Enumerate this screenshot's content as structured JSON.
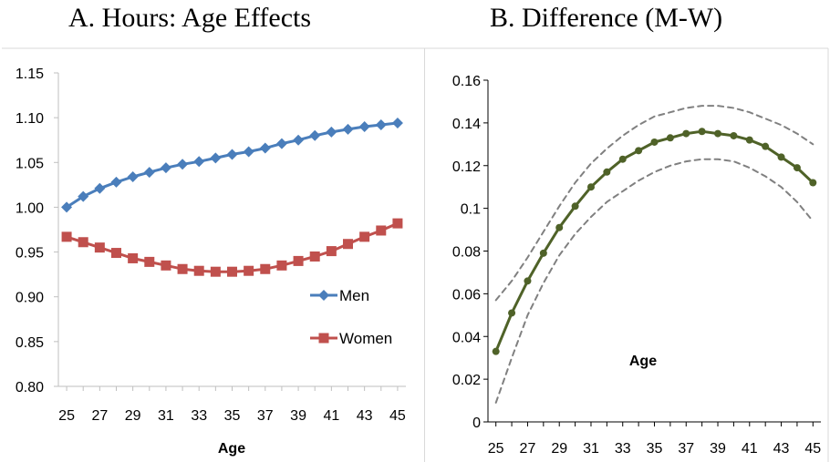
{
  "panels": {
    "a_title": "A. Hours: Age Effects",
    "b_title": "B. Difference (M-W)"
  },
  "chart_data": [
    {
      "type": "line",
      "title": "A. Hours: Age Effects",
      "xlabel": "Age",
      "ylabel": "",
      "x": [
        25,
        26,
        27,
        28,
        29,
        30,
        31,
        32,
        33,
        34,
        35,
        36,
        37,
        38,
        39,
        40,
        41,
        42,
        43,
        44,
        45
      ],
      "x_tick_labels": [
        "25",
        "27",
        "29",
        "31",
        "33",
        "35",
        "37",
        "39",
        "41",
        "43",
        "45"
      ],
      "y_tick_labels": [
        "0.80",
        "0.85",
        "0.90",
        "0.95",
        "1.00",
        "1.05",
        "1.10",
        "1.15"
      ],
      "ylim": [
        0.8,
        1.15
      ],
      "legend_position": "bottom-right",
      "series": [
        {
          "name": "Men",
          "color": "#4a7ebb",
          "marker": "diamond",
          "values": [
            1.0,
            1.012,
            1.021,
            1.028,
            1.034,
            1.039,
            1.044,
            1.048,
            1.051,
            1.055,
            1.059,
            1.062,
            1.066,
            1.071,
            1.075,
            1.08,
            1.084,
            1.087,
            1.09,
            1.092,
            1.094
          ]
        },
        {
          "name": "Women",
          "color": "#c0504d",
          "marker": "square",
          "values": [
            0.967,
            0.961,
            0.955,
            0.949,
            0.943,
            0.939,
            0.935,
            0.931,
            0.929,
            0.928,
            0.928,
            0.929,
            0.931,
            0.935,
            0.94,
            0.945,
            0.951,
            0.959,
            0.967,
            0.974,
            0.982
          ]
        }
      ]
    },
    {
      "type": "line",
      "title": "B. Difference (M-W)",
      "xlabel": "Age",
      "ylabel": "",
      "x": [
        25,
        26,
        27,
        28,
        29,
        30,
        31,
        32,
        33,
        34,
        35,
        36,
        37,
        38,
        39,
        40,
        41,
        42,
        43,
        44,
        45
      ],
      "x_tick_labels": [
        "25",
        "27",
        "29",
        "31",
        "33",
        "35",
        "37",
        "39",
        "41",
        "43",
        "45"
      ],
      "y_tick_labels": [
        "0",
        "0.02",
        "0.04",
        "0.06",
        "0.08",
        "0.1",
        "0.12",
        "0.14",
        "0.16"
      ],
      "ylim": [
        0,
        0.16
      ],
      "legend_position": "bottom-right",
      "series": [
        {
          "name": "Difference (M-W)",
          "color": "#4f6228",
          "marker": "circle",
          "values": [
            0.033,
            0.051,
            0.066,
            0.079,
            0.091,
            0.101,
            0.11,
            0.117,
            0.123,
            0.127,
            0.131,
            0.133,
            0.135,
            0.136,
            0.135,
            0.134,
            0.132,
            0.129,
            0.124,
            0.119,
            0.112
          ]
        },
        {
          "name": "",
          "role": "upper band",
          "color": "#808080",
          "style": "dashed",
          "values": [
            0.057,
            0.066,
            0.077,
            0.089,
            0.101,
            0.112,
            0.121,
            0.128,
            0.134,
            0.139,
            0.143,
            0.145,
            0.147,
            0.148,
            0.148,
            0.147,
            0.145,
            0.142,
            0.139,
            0.135,
            0.13
          ]
        },
        {
          "name": "",
          "role": "lower band",
          "color": "#808080",
          "style": "dashed",
          "values": [
            0.009,
            0.03,
            0.05,
            0.065,
            0.078,
            0.088,
            0.096,
            0.103,
            0.108,
            0.113,
            0.117,
            0.12,
            0.122,
            0.123,
            0.123,
            0.122,
            0.119,
            0.115,
            0.11,
            0.103,
            0.094
          ]
        }
      ]
    }
  ]
}
